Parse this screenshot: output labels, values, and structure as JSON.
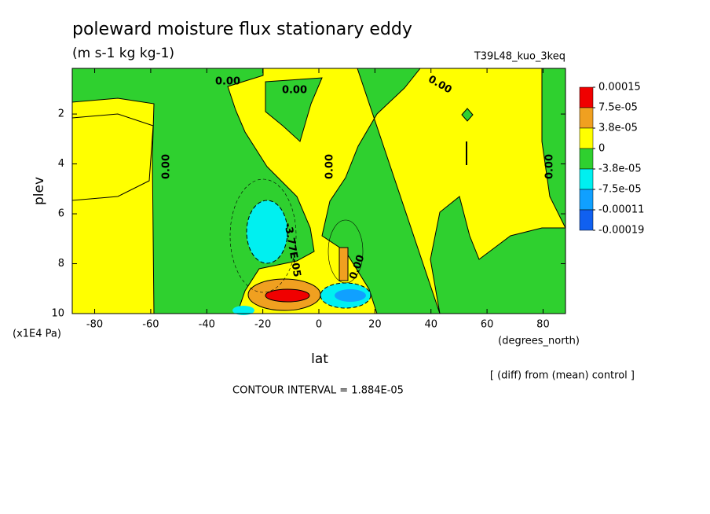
{
  "chart_data": {
    "type": "contour",
    "title": "poleward moisture flux stationary eddy",
    "subtitle": "(m s-1 kg kg-1)",
    "run_label": "T39L48_kuo_3keq",
    "x_label": "lat",
    "x_unit": "(degrees_north)",
    "y_label": "plev",
    "y_unit": "(x1E4 Pa)",
    "note": "[ (diff) from (mean) control ]",
    "contour_interval": "CONTOUR INTERVAL = 1.884E-05",
    "xlim": [
      -88,
      88
    ],
    "ylim": [
      10,
      0.17
    ],
    "xticks": [
      -80,
      -60,
      -40,
      -20,
      0,
      20,
      40,
      60,
      80
    ],
    "yticks": [
      2,
      4,
      6,
      8,
      10
    ],
    "levels": [
      {
        "value": 0.00015,
        "label": "0.00015"
      },
      {
        "value": 7.5e-05,
        "label": "7.5e-05"
      },
      {
        "value": 3.8e-05,
        "label": "3.8e-05"
      },
      0,
      {
        "value": -3.8e-05,
        "label": "-3.8e-05"
      },
      {
        "value": -7.5e-05,
        "label": "-7.5e-05"
      },
      {
        "value": -0.00011,
        "label": "-0.00011"
      },
      {
        "value": -0.00019,
        "label": "-0.00019"
      }
    ],
    "colors": [
      "#f00000",
      "#f0a020",
      "#ffff00",
      "#2fd02f",
      "#00f0f0",
      "#10a0ff",
      "#1060f0"
    ],
    "contour_labels": [
      "0.00",
      "0.00",
      "0.00",
      "0.00",
      "0.00",
      "0.00",
      "0.00",
      "-3.77E-05"
    ]
  }
}
